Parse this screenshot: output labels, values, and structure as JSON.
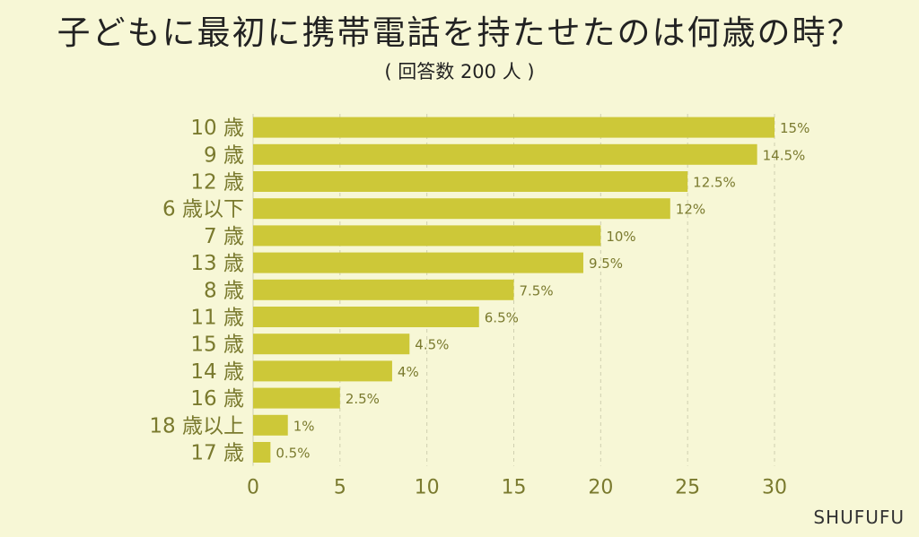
{
  "chart_data": {
    "type": "bar",
    "orientation": "horizontal",
    "title": "子どもに最初に携帯電話を持たせたのは何歳の時？",
    "subtitle": "( 回答数 200 人 )",
    "categories": [
      "10 歳",
      "9 歳",
      "12 歳",
      "6 歳以下",
      "7 歳",
      "13 歳",
      "8 歳",
      "11 歳",
      "15 歳",
      "14 歳",
      "16 歳",
      "18 歳以上",
      "17 歳"
    ],
    "values": [
      15,
      14.5,
      12.5,
      12,
      10,
      9.5,
      7.5,
      6.5,
      4.5,
      4,
      2.5,
      1,
      0.5
    ],
    "data_labels": [
      "15%",
      "14.5%",
      "12.5%",
      "12%",
      "10%",
      "9.5%",
      "7.5%",
      "6.5%",
      "4.5%",
      "4%",
      "2.5%",
      "1%",
      "0.5%"
    ],
    "xlim": [
      0,
      30
    ],
    "x_ticks": [
      0,
      5,
      10,
      15,
      20,
      25,
      30
    ],
    "bar_scale": 2,
    "grid": true,
    "legend": "none",
    "bar_color": "#cdc838"
  },
  "brand": "SHUFUFU"
}
